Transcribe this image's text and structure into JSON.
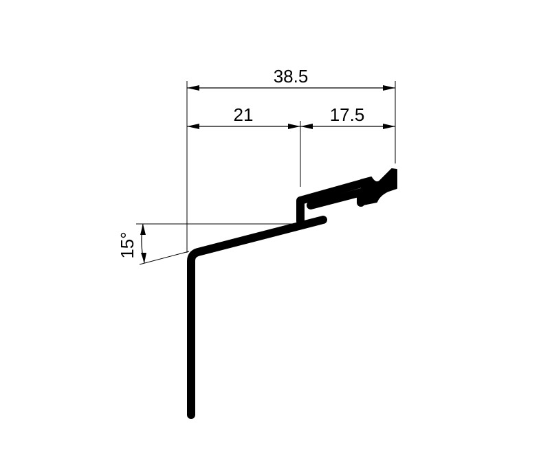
{
  "drawing": {
    "dimensions": {
      "overall_width": "38.5",
      "left_width": "21",
      "right_width": "17.5",
      "angle": "15°"
    }
  }
}
